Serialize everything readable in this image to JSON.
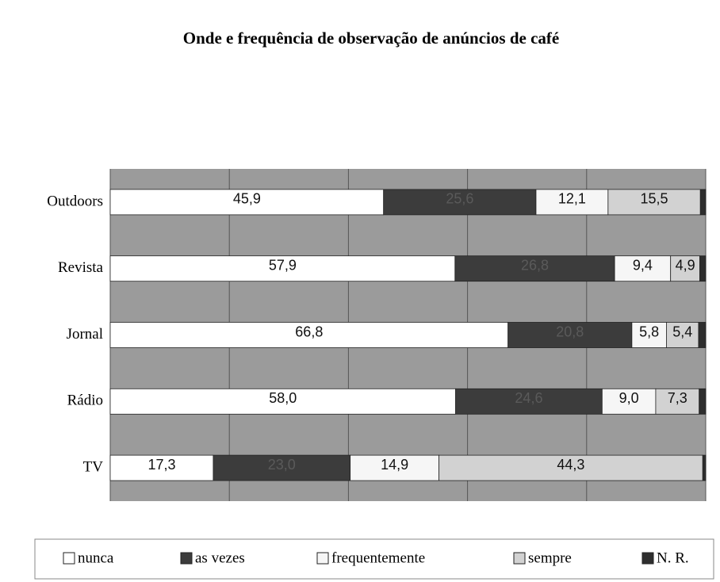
{
  "chart_data": {
    "type": "stacked-barh",
    "title": "Onde e frequência de observação de anúncios de café",
    "categories": [
      "Outdoors",
      "Revista",
      "Jornal",
      "Rádio",
      "TV"
    ],
    "series": [
      {
        "name": "nunca",
        "color": "#ffffff",
        "values": [
          45.9,
          57.9,
          66.8,
          58.0,
          17.3
        ],
        "value_labels": [
          "45,9",
          "57,9",
          "66,8",
          "58,0",
          "17,3"
        ]
      },
      {
        "name": "as vezes",
        "color": "#3c3c3c",
        "values": [
          25.6,
          26.8,
          20.8,
          24.6,
          23.0
        ],
        "value_labels": [
          "25,6",
          "26,8",
          "20,8",
          "24,6",
          "23,0"
        ]
      },
      {
        "name": "frequentemente",
        "color": "#f6f6f6",
        "values": [
          12.1,
          9.4,
          5.8,
          9.0,
          14.9
        ],
        "value_labels": [
          "12,1",
          "9,4",
          "5,8",
          "9,0",
          "14,9"
        ]
      },
      {
        "name": "sempre",
        "color": "#d2d2d2",
        "values": [
          15.5,
          4.9,
          5.4,
          7.3,
          44.3
        ],
        "value_labels": [
          "15,5",
          "4,9",
          "5,4",
          "7,3",
          "44,3"
        ]
      },
      {
        "name": "N. R.",
        "color": "#2e2e2e",
        "values": [
          0.9,
          1.0,
          1.2,
          1.1,
          0.5
        ]
      }
    ],
    "xlim": [
      0,
      100
    ],
    "xticks": [
      0,
      20,
      40,
      60,
      80,
      100
    ],
    "grid": true,
    "legend": "bottom"
  }
}
